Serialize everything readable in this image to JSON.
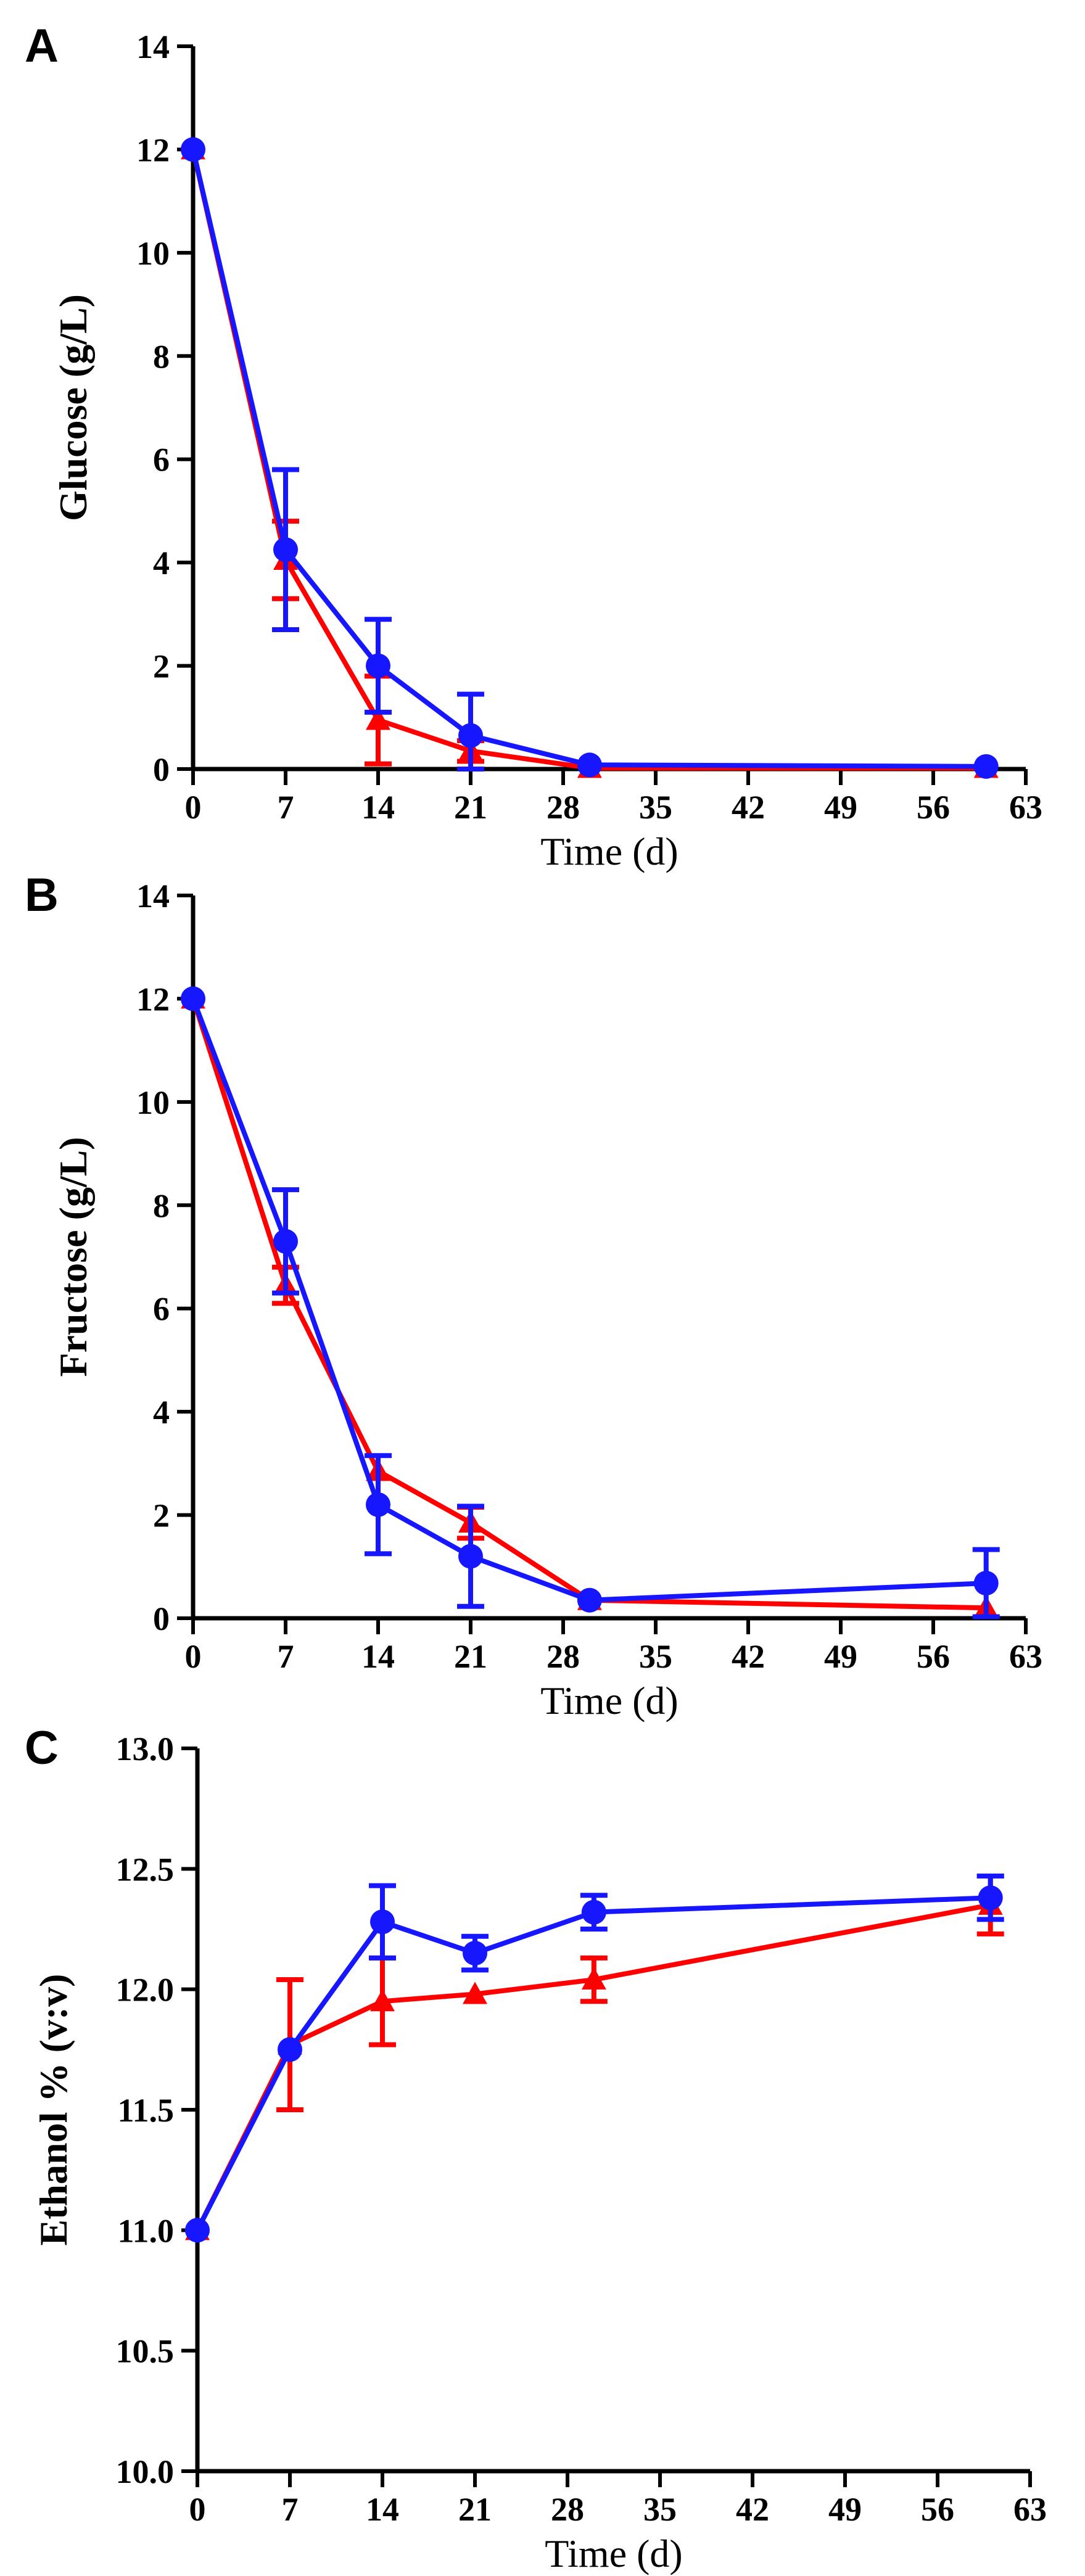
{
  "colors": {
    "red": "#ff0000",
    "blue": "#1616ff",
    "axis": "#000000"
  },
  "chart_data": [
    {
      "panel": "A",
      "type": "line",
      "xlabel": "Time (d)",
      "ylabel": "Glucose (g/L)",
      "xlim": [
        0,
        63
      ],
      "ylim": [
        0,
        14
      ],
      "xticks": [
        "0",
        "7",
        "14",
        "21",
        "28",
        "35",
        "42",
        "49",
        "56",
        "63"
      ],
      "yticks": [
        "0",
        "2",
        "4",
        "6",
        "8",
        "10",
        "12",
        "14"
      ],
      "series": [
        {
          "color": "red",
          "marker": "triangle",
          "x": [
            0,
            7,
            14,
            21,
            30,
            60
          ],
          "y": [
            12.0,
            4.05,
            0.95,
            0.35,
            0.02,
            0.02
          ],
          "err": [
            0,
            0.75,
            0.85,
            0.2,
            0,
            0
          ]
        },
        {
          "color": "blue",
          "marker": "circle",
          "x": [
            0,
            7,
            14,
            21,
            30,
            60
          ],
          "y": [
            12.0,
            4.25,
            2.0,
            0.65,
            0.08,
            0.05
          ],
          "err": [
            0,
            1.55,
            0.9,
            0.8,
            0,
            0
          ]
        }
      ]
    },
    {
      "panel": "B",
      "type": "line",
      "xlabel": "Time (d)",
      "ylabel": "Fructose (g/L)",
      "xlim": [
        0,
        63
      ],
      "ylim": [
        0,
        14
      ],
      "xticks": [
        "0",
        "7",
        "14",
        "21",
        "28",
        "35",
        "42",
        "49",
        "56",
        "63"
      ],
      "yticks": [
        "0",
        "2",
        "4",
        "6",
        "8",
        "10",
        "12",
        "14"
      ],
      "series": [
        {
          "color": "red",
          "marker": "triangle",
          "x": [
            0,
            7,
            14,
            21,
            30,
            60
          ],
          "y": [
            12.0,
            6.45,
            2.85,
            1.85,
            0.35,
            0.2
          ],
          "err": [
            0,
            0.35,
            0,
            0.3,
            0,
            0
          ]
        },
        {
          "color": "blue",
          "marker": "circle",
          "x": [
            0,
            7,
            14,
            21,
            30,
            60
          ],
          "y": [
            12.0,
            7.3,
            2.2,
            1.2,
            0.35,
            0.68
          ],
          "err": [
            0,
            1.0,
            0.95,
            0.97,
            0,
            0.65
          ]
        }
      ]
    },
    {
      "panel": "C",
      "type": "line",
      "xlabel": "Time (d)",
      "ylabel": "Ethanol % (v:v)",
      "xlim": [
        0,
        63
      ],
      "ylim": [
        10.0,
        13.0
      ],
      "xticks": [
        "0",
        "7",
        "14",
        "21",
        "28",
        "35",
        "42",
        "49",
        "56",
        "63"
      ],
      "yticks": [
        "10.0",
        "10.5",
        "11.0",
        "11.5",
        "12.0",
        "12.5",
        "13.0"
      ],
      "series": [
        {
          "color": "red",
          "marker": "triangle",
          "x": [
            0,
            7,
            14,
            21,
            30,
            60
          ],
          "y": [
            11.0,
            11.77,
            11.95,
            11.98,
            12.04,
            12.35
          ],
          "err": [
            0,
            0.27,
            0.18,
            0,
            0.09,
            0.12
          ]
        },
        {
          "color": "blue",
          "marker": "circle",
          "x": [
            0,
            7,
            14,
            21,
            30,
            60
          ],
          "y": [
            11.0,
            11.75,
            12.28,
            12.15,
            12.32,
            12.38
          ],
          "err": [
            0,
            0,
            0.15,
            0.07,
            0.07,
            0.09
          ]
        }
      ]
    }
  ]
}
